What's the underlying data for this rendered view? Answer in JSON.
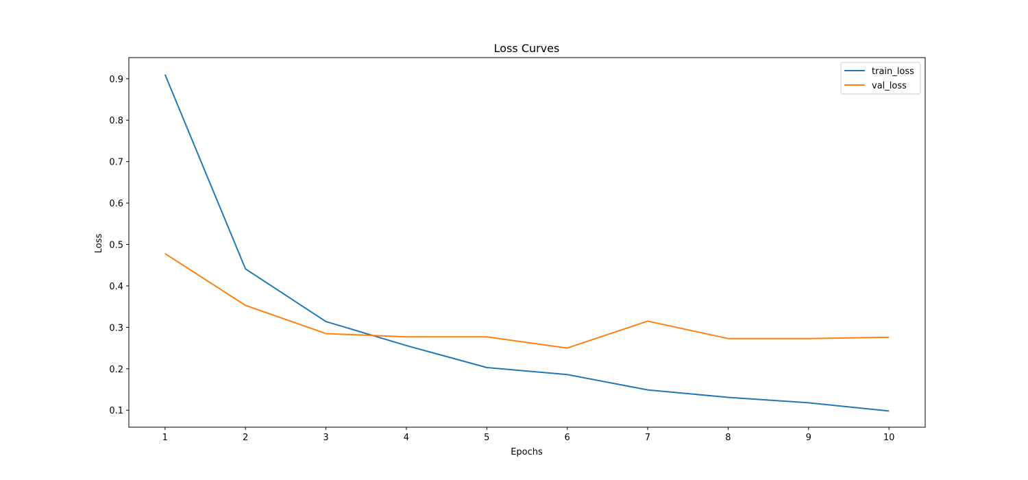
{
  "chart_data": {
    "type": "line",
    "title": "Loss Curves",
    "xlabel": "Epochs",
    "ylabel": "Loss",
    "x": [
      1,
      2,
      3,
      4,
      5,
      6,
      7,
      8,
      9,
      10
    ],
    "xticks": [
      1,
      2,
      3,
      4,
      5,
      6,
      7,
      8,
      9,
      10
    ],
    "yticks": [
      0.1,
      0.2,
      0.3,
      0.4,
      0.5,
      0.6,
      0.7,
      0.8,
      0.9
    ],
    "xlim": [
      0.55,
      10.45
    ],
    "ylim": [
      0.059,
      0.951
    ],
    "grid": false,
    "legend_position": "top-right",
    "series": [
      {
        "name": "train_loss",
        "color": "#1f77b4",
        "values": [
          0.91,
          0.441,
          0.314,
          0.256,
          0.203,
          0.186,
          0.149,
          0.131,
          0.118,
          0.098
        ]
      },
      {
        "name": "val_loss",
        "color": "#ff7f0e",
        "values": [
          0.478,
          0.353,
          0.285,
          0.277,
          0.277,
          0.25,
          0.315,
          0.273,
          0.273,
          0.276
        ]
      }
    ]
  }
}
